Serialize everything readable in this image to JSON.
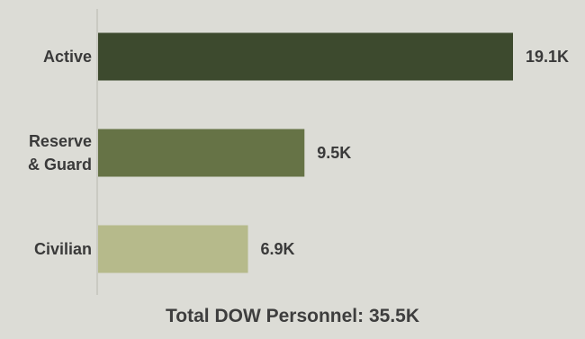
{
  "chart_data": {
    "type": "bar",
    "orientation": "horizontal",
    "categories": [
      "Active",
      "Reserve\n& Guard",
      "Civilian"
    ],
    "values": [
      19.1,
      9.5,
      6.9
    ],
    "value_labels": [
      "19.1K",
      "9.5K",
      "6.9K"
    ],
    "unit": "K",
    "xlim": [
      0,
      19.1
    ],
    "grid": false,
    "legend": "none",
    "colors": [
      "#3d4a2e",
      "#667346",
      "#b6ba8b"
    ]
  },
  "total_label": "Total DOW Personnel: 35.5K"
}
